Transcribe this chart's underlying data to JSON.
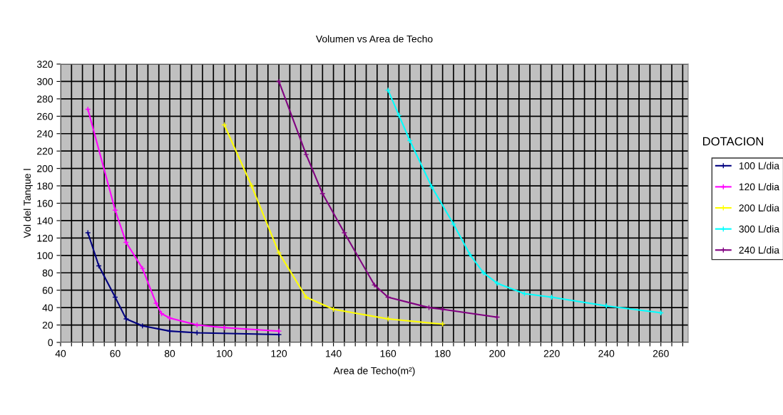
{
  "chart_data": {
    "type": "line",
    "title": "Volumen vs Area de Techo",
    "xlabel": "Area de Techo(m²)",
    "ylabel": "Vol del Tanque l",
    "legend_title": "DOTACION",
    "legend": "right",
    "grid": true,
    "marker": "cross",
    "line_style": "solid",
    "xlim": [
      40,
      270
    ],
    "ylim": [
      0,
      320
    ],
    "xticks": [
      40,
      {
        "value": 44,
        "label": null
      },
      {
        "value": 48,
        "label": null
      },
      {
        "value": 52,
        "label": null
      },
      {
        "value": 56,
        "label": null
      },
      60,
      {
        "value": 64,
        "label": null
      },
      {
        "value": 68,
        "label": null
      },
      {
        "value": 72,
        "label": null
      },
      {
        "value": 76,
        "label": null
      },
      80,
      {
        "value": 84,
        "label": null
      },
      {
        "value": 88,
        "label": null
      },
      {
        "value": 92,
        "label": null
      },
      {
        "value": 96,
        "label": null
      },
      100,
      {
        "value": 104,
        "label": null
      },
      {
        "value": 108,
        "label": null
      },
      {
        "value": 112,
        "label": null
      },
      {
        "value": 116,
        "label": null
      },
      120,
      {
        "value": 124,
        "label": null
      },
      {
        "value": 128,
        "label": null
      },
      {
        "value": 132,
        "label": null
      },
      {
        "value": 136,
        "label": null
      },
      140,
      {
        "value": 144,
        "label": null
      },
      {
        "value": 148,
        "label": null
      },
      {
        "value": 152,
        "label": null
      },
      {
        "value": 156,
        "label": null
      },
      160,
      {
        "value": 164,
        "label": null
      },
      {
        "value": 168,
        "label": null
      },
      {
        "value": 172,
        "label": null
      },
      {
        "value": 176,
        "label": null
      },
      180,
      {
        "value": 184,
        "label": null
      },
      {
        "value": 188,
        "label": null
      },
      {
        "value": 192,
        "label": null
      },
      {
        "value": 196,
        "label": null
      },
      200,
      {
        "value": 204,
        "label": null
      },
      {
        "value": 208,
        "label": null
      },
      {
        "value": 212,
        "label": null
      },
      {
        "value": 216,
        "label": null
      },
      220,
      {
        "value": 224,
        "label": null
      },
      {
        "value": 228,
        "label": null
      },
      {
        "value": 232,
        "label": null
      },
      {
        "value": 236,
        "label": null
      },
      240,
      {
        "value": 244,
        "label": null
      },
      {
        "value": 248,
        "label": null
      },
      {
        "value": 252,
        "label": null
      },
      {
        "value": 256,
        "label": null
      },
      260,
      {
        "value": 264,
        "label": null
      },
      {
        "value": 268,
        "label": null
      }
    ],
    "yticks": [
      0,
      20,
      40,
      60,
      80,
      100,
      120,
      140,
      160,
      180,
      200,
      220,
      240,
      260,
      280,
      300,
      320
    ],
    "series": [
      {
        "name": "100 L/dia",
        "color": "#000080",
        "x": [
          50,
          54,
          60,
          64,
          70,
          80,
          90,
          120
        ],
        "values": [
          126,
          88,
          52,
          27,
          19,
          13,
          11,
          9
        ]
      },
      {
        "name": "120 L/dia",
        "color": "#ff00ff",
        "x": [
          50,
          60,
          64,
          70,
          75,
          77,
          80,
          90,
          100,
          120
        ],
        "values": [
          268,
          152,
          115,
          85,
          45,
          33,
          28,
          20,
          17,
          13
        ]
      },
      {
        "name": "200 L/dia",
        "color": "#ffff00",
        "x": [
          100,
          110,
          120,
          130,
          140,
          160,
          180
        ],
        "values": [
          250,
          180,
          103,
          52,
          38,
          27,
          21
        ]
      },
      {
        "name": "300 L/dia",
        "color": "#00ffff",
        "x": [
          160,
          164,
          168,
          176,
          184,
          190,
          195,
          200,
          210,
          220,
          240,
          260
        ],
        "values": [
          290,
          261,
          232,
          179,
          136,
          101,
          80,
          68,
          56,
          52,
          42,
          34
        ]
      },
      {
        "name": "240 L/dia",
        "color": "#800080",
        "x": [
          120,
          130,
          136,
          144,
          155,
          160,
          175,
          180,
          200
        ],
        "values": [
          300,
          216,
          171,
          126,
          66,
          52,
          40,
          38,
          29
        ]
      }
    ]
  }
}
